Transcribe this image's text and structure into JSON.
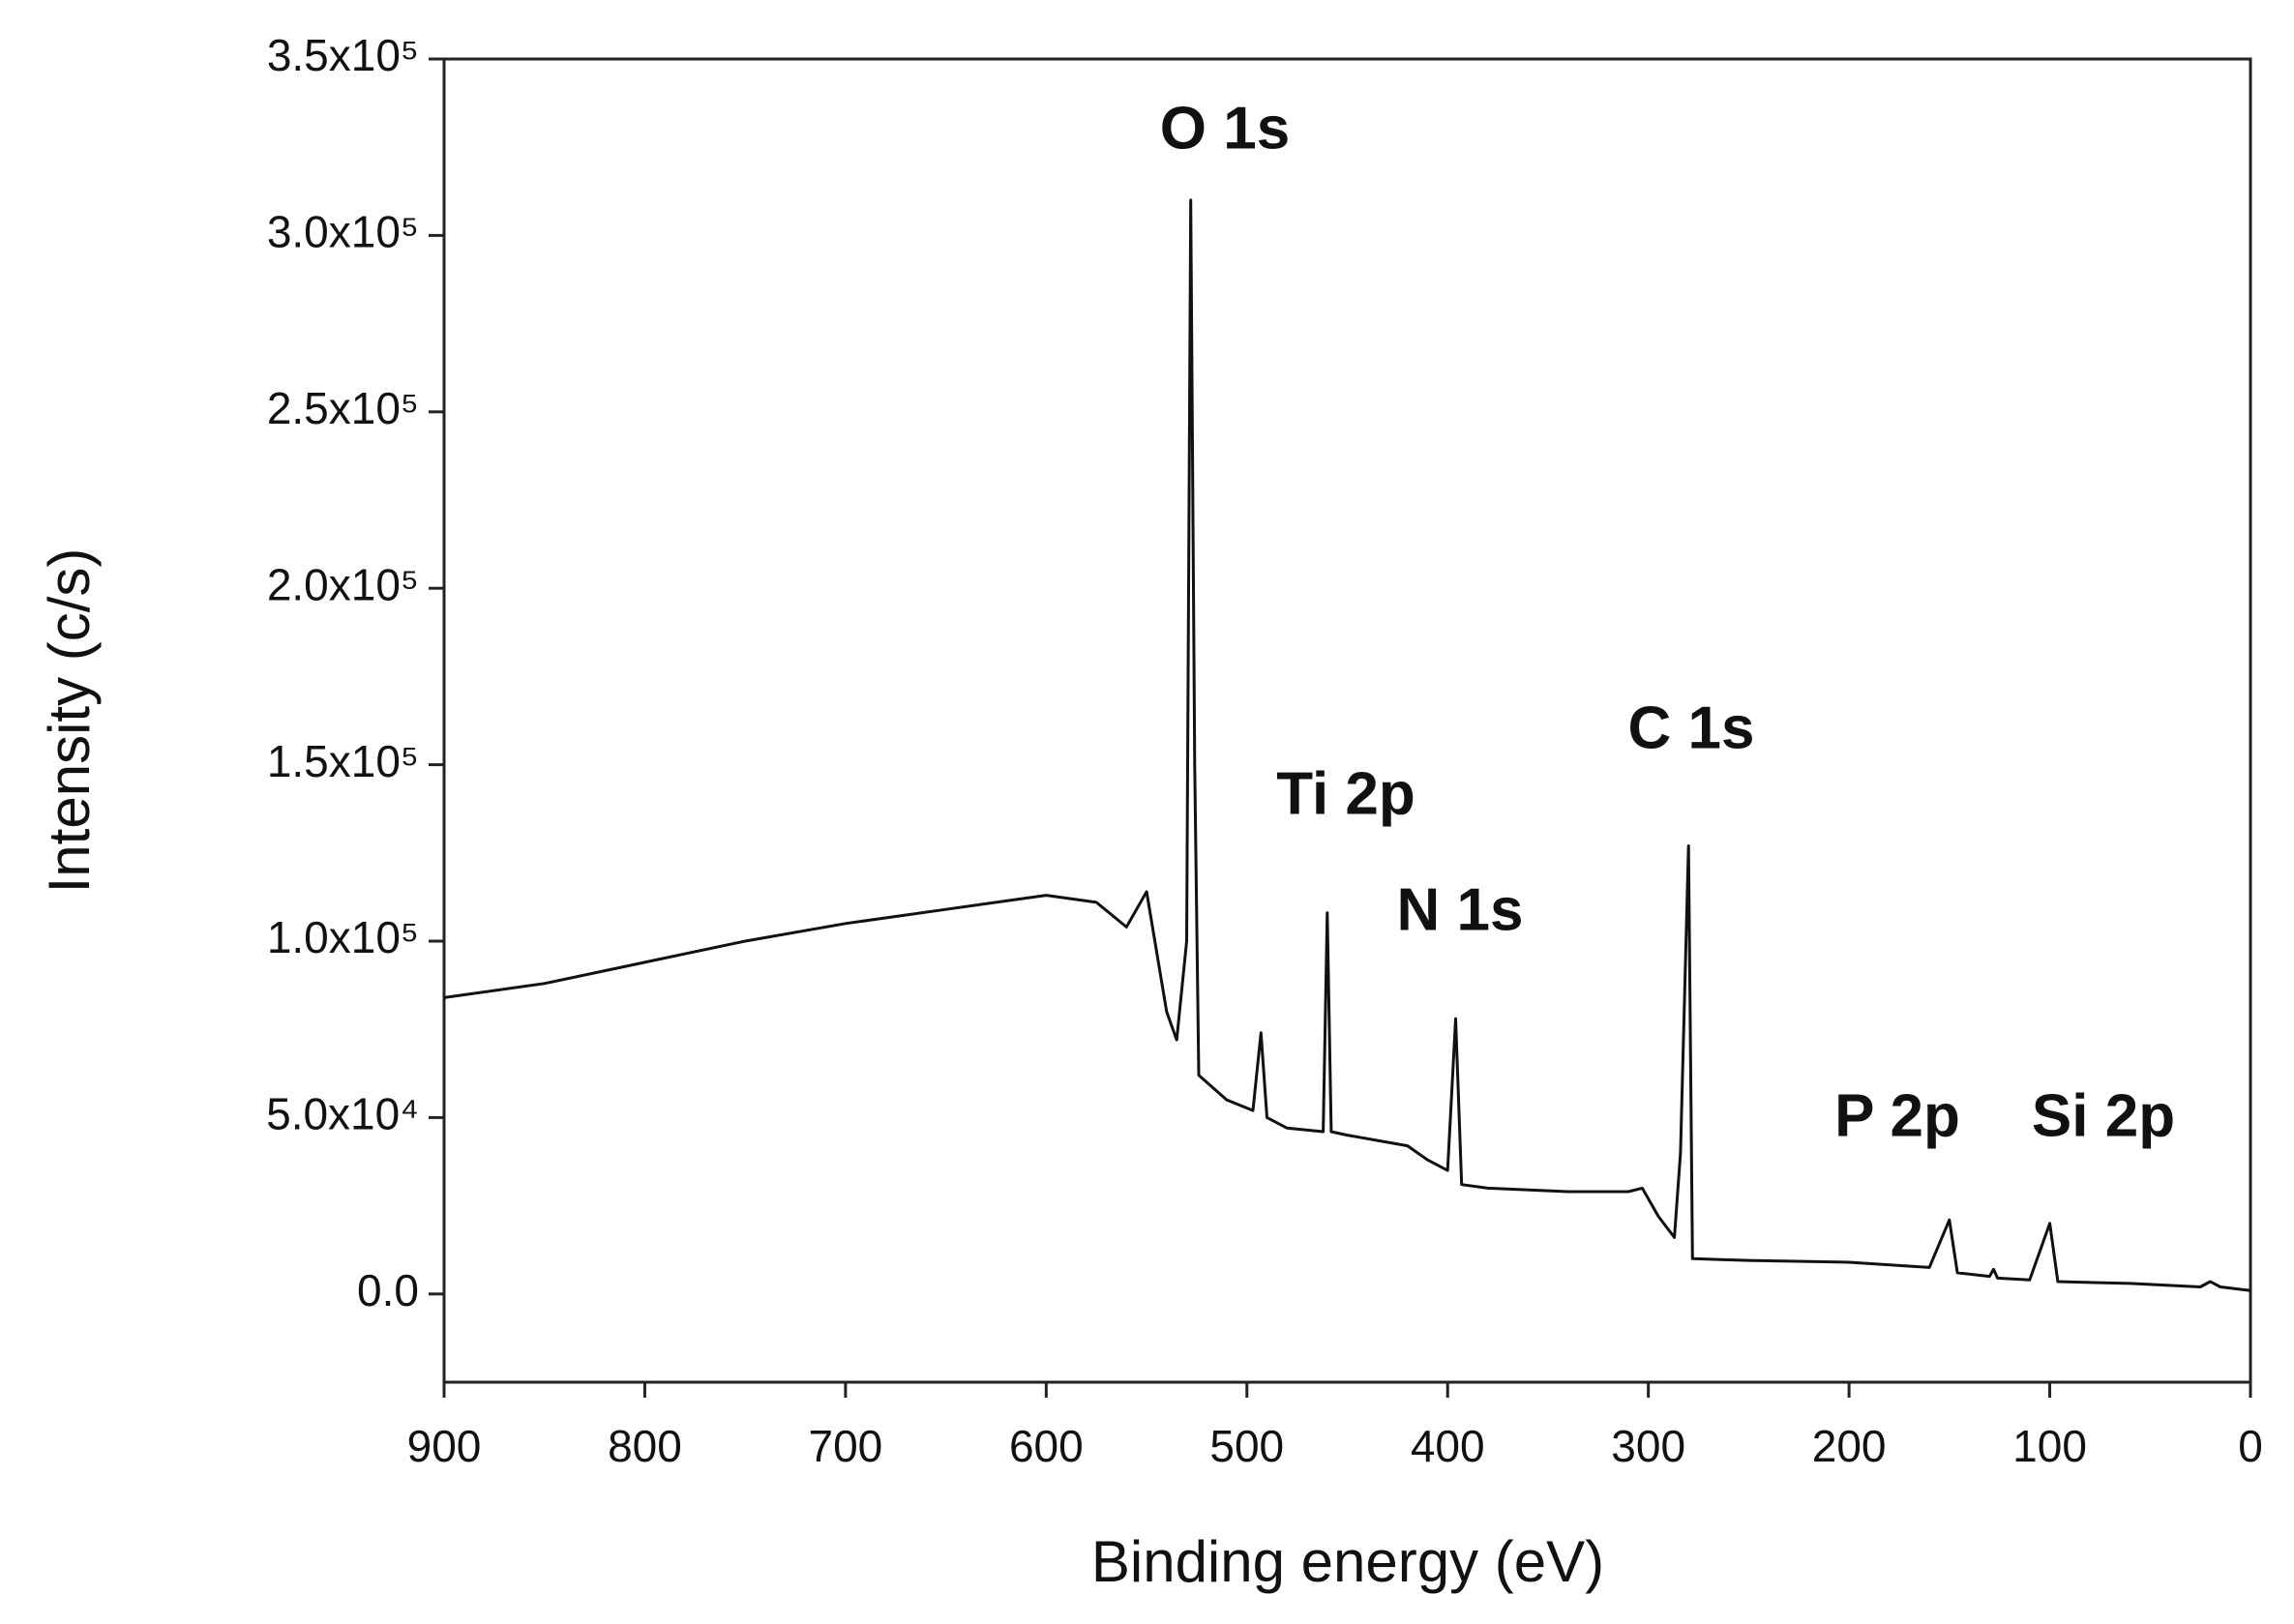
{
  "chart_data": {
    "type": "line",
    "x_label": "Binding energy (eV)",
    "y_label": "Intensity (c/s)",
    "annotations": [
      "O 1s",
      "Ti 2p",
      "N 1s",
      "C 1s",
      "P 2p",
      "Si 2p"
    ],
    "color": "#111111",
    "xlim": [
      900,
      0
    ],
    "ylim": [
      -25000,
      350000
    ],
    "xticks": [
      900,
      800,
      700,
      600,
      500,
      400,
      300,
      200,
      100,
      0
    ],
    "yticks": [
      {
        "value": 0,
        "label": "0.0"
      },
      {
        "value": 50000,
        "label": "5.0x10⁴"
      },
      {
        "value": 100000,
        "label": "1.0x10⁵"
      },
      {
        "value": 150000,
        "label": "1.5x10⁵"
      },
      {
        "value": 200000,
        "label": "2.0x10⁵"
      },
      {
        "value": 250000,
        "label": "2.5x10⁵"
      },
      {
        "value": 300000,
        "label": "3.0x10⁵"
      },
      {
        "value": 350000,
        "label": "3.5x10⁵"
      }
    ],
    "x": [
      900,
      850,
      800,
      750,
      700,
      650,
      600,
      575,
      560,
      550,
      540,
      535,
      530,
      528,
      526,
      524,
      510,
      497,
      493,
      490,
      480,
      462,
      460,
      458,
      450,
      420,
      410,
      400,
      396,
      393,
      380,
      340,
      310,
      303,
      295,
      287,
      284,
      280,
      278,
      250,
      200,
      160,
      150,
      146,
      130,
      128,
      126,
      110,
      100,
      96,
      60,
      25,
      20,
      15,
      0
    ],
    "values": [
      84000,
      88000,
      94000,
      100000,
      105000,
      109000,
      113000,
      111000,
      104000,
      114000,
      80000,
      72000,
      100000,
      310000,
      150000,
      62000,
      55000,
      52000,
      74000,
      50000,
      47000,
      46000,
      108000,
      46000,
      45000,
      42000,
      38000,
      35000,
      78000,
      31000,
      30000,
      29000,
      29000,
      30000,
      22000,
      16000,
      40000,
      127000,
      10000,
      9500,
      9000,
      7500,
      21000,
      6000,
      5000,
      7000,
      4500,
      4000,
      20000,
      3500,
      3000,
      2000,
      3500,
      2000,
      1000
    ]
  }
}
